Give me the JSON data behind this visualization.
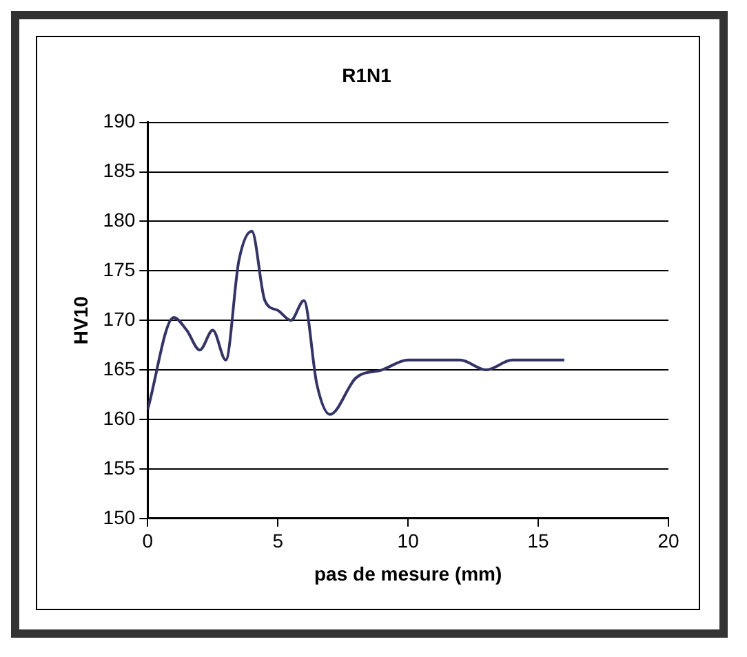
{
  "chart_data": {
    "type": "line",
    "title": "R1N1",
    "xlabel": "pas de mesure (mm)",
    "ylabel": "HV10",
    "x": [
      0,
      1,
      1.5,
      2,
      2.5,
      3,
      3.5,
      4,
      4.5,
      5,
      5.5,
      6,
      6.5,
      7,
      8,
      9,
      10,
      11,
      12,
      13,
      14,
      15,
      16
    ],
    "series": [
      {
        "color": "#333366",
        "values": [
          161,
          170.3,
          169,
          167,
          169,
          166,
          176,
          179,
          172,
          171,
          170,
          172,
          163.5,
          160.5,
          164.2,
          165,
          166,
          166,
          166,
          165,
          166,
          166,
          166
        ]
      }
    ],
    "xlim": [
      0,
      20
    ],
    "xticks": [
      0,
      5,
      10,
      15,
      20
    ],
    "ylim": [
      150,
      190
    ],
    "yticks": [
      150,
      155,
      160,
      165,
      170,
      175,
      180,
      185,
      190
    ],
    "grid": "y",
    "legend": false,
    "marker": "none",
    "line_style": "solid"
  }
}
